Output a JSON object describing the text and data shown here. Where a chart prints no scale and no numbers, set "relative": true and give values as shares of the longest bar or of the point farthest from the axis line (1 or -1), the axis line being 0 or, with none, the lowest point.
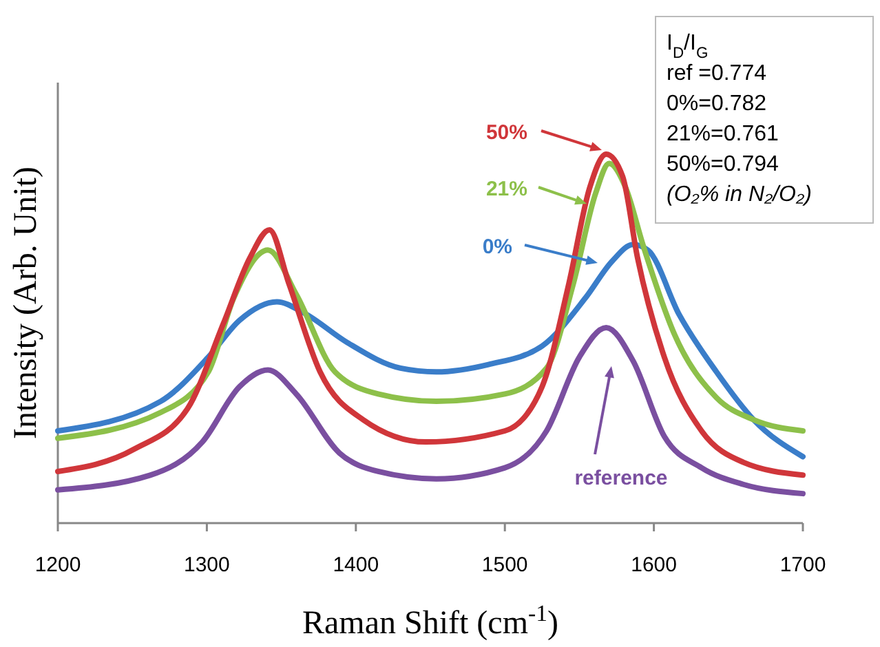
{
  "chart_data": {
    "type": "line",
    "relative": true,
    "xlabel": "Raman Shift (cm$^{-1}$)",
    "ylabel": "Intensity (Arb. Unit)",
    "xlim": [
      1200,
      1700
    ],
    "xticks": [
      1200,
      1300,
      1400,
      1500,
      1600,
      1700
    ],
    "grid": false,
    "legend": "top",
    "marker": "none",
    "line_style": "solid",
    "series": [
      {
        "name": "0%",
        "color": "#3a7dc9",
        "x": [
          1200,
          1269,
          1301,
          1322,
          1347,
          1365,
          1394,
          1430,
          1454,
          1489,
          1525,
          1554,
          1572,
          1586,
          1596,
          1617,
          1642,
          1667,
          1700
        ],
        "values": [
          0.25,
          0.33,
          0.45,
          0.55,
          0.6,
          0.57,
          0.49,
          0.42,
          0.41,
          0.43,
          0.48,
          0.61,
          0.71,
          0.755,
          0.74,
          0.565,
          0.41,
          0.28,
          0.18
        ]
      },
      {
        "name": "21%",
        "color": "#8dc04a",
        "x": [
          1200,
          1269,
          1301,
          1318,
          1341,
          1360,
          1386,
          1415,
          1454,
          1500,
          1528,
          1546,
          1561,
          1570,
          1581,
          1593,
          1614,
          1642,
          1667,
          1700
        ],
        "values": [
          0.23,
          0.3,
          0.41,
          0.61,
          0.74,
          0.62,
          0.41,
          0.35,
          0.33,
          0.35,
          0.42,
          0.65,
          0.895,
          0.975,
          0.91,
          0.75,
          0.51,
          0.34,
          0.28,
          0.25
        ]
      },
      {
        "name": "50%",
        "color": "#d0363a",
        "x": [
          1200,
          1251,
          1287,
          1311,
          1329,
          1342,
          1355,
          1376,
          1405,
          1447,
          1500,
          1525,
          1543,
          1557,
          1568,
          1579,
          1589,
          1607,
          1632,
          1660,
          1700
        ],
        "values": [
          0.14,
          0.2,
          0.31,
          0.54,
          0.72,
          0.795,
          0.65,
          0.41,
          0.28,
          0.22,
          0.25,
          0.37,
          0.65,
          0.91,
          1.0,
          0.94,
          0.72,
          0.45,
          0.25,
          0.165,
          0.13
        ]
      },
      {
        "name": "reference",
        "color": "#7a4fa0",
        "x": [
          1200,
          1262,
          1297,
          1322,
          1341,
          1360,
          1389,
          1415,
          1454,
          1500,
          1528,
          1550,
          1568,
          1586,
          1607,
          1632,
          1660,
          1700
        ],
        "values": [
          0.09,
          0.13,
          0.22,
          0.37,
          0.415,
          0.35,
          0.19,
          0.14,
          0.12,
          0.15,
          0.25,
          0.45,
          0.53,
          0.44,
          0.235,
          0.15,
          0.105,
          0.08
        ]
      }
    ],
    "annotations": [
      "I$_{D}$/I$_{G}$",
      "ref =0.774",
      "0%=0.782",
      "21%=0.761",
      "50%=0.794",
      "(O₂% in N₂/O₂)"
    ]
  }
}
